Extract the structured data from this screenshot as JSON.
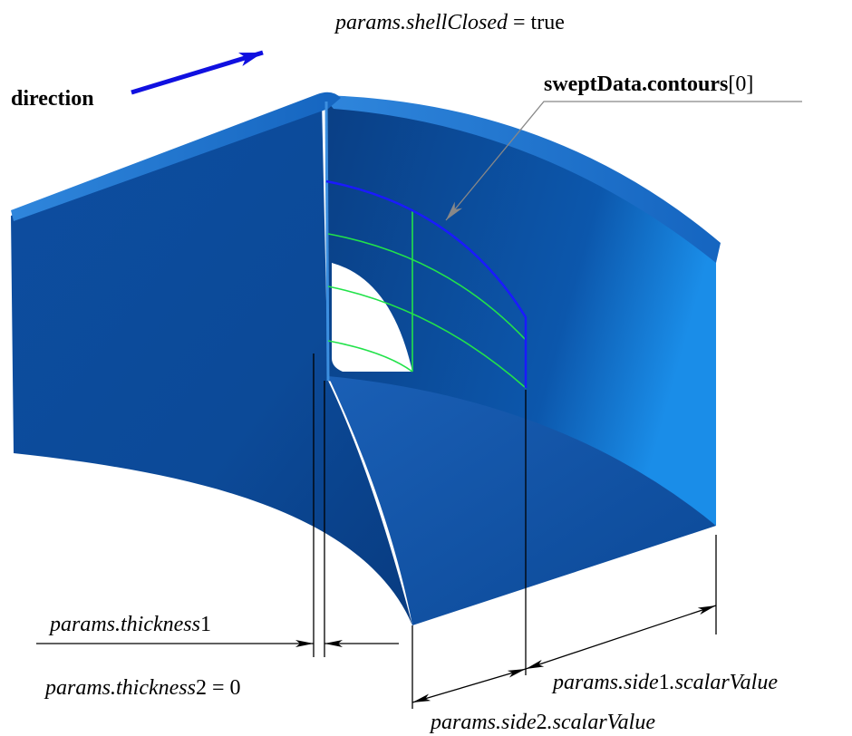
{
  "labels": {
    "shell_closed": [
      "params.shellClosed",
      "= true"
    ],
    "direction": "direction",
    "contours": [
      "sweptData.contours",
      "[0]"
    ],
    "thickness1": [
      "params.thickness",
      "1"
    ],
    "thickness2": [
      "params.thickness",
      "2 = 0"
    ],
    "side1": [
      "params.side",
      "1",
      ".scalarValue"
    ],
    "side2": [
      "params.side",
      "2",
      ".scalarValue"
    ]
  }
}
